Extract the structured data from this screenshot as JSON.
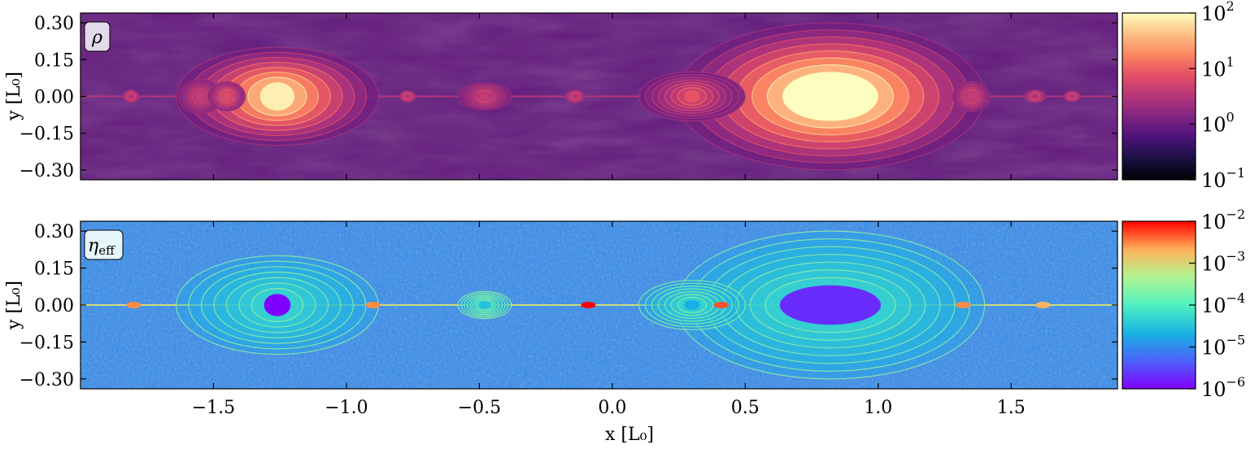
{
  "chart_data": [
    {
      "type": "heatmap",
      "panel_label": "ρ",
      "ylabel": "y [L₀]",
      "xlim": [
        -2.0,
        1.9
      ],
      "ylim": [
        -0.34,
        0.34
      ],
      "yticks": [
        {
          "value": 0.3,
          "label": "0.30"
        },
        {
          "value": 0.15,
          "label": "0.15"
        },
        {
          "value": 0.0,
          "label": "0.00"
        },
        {
          "value": -0.15,
          "label": "−0.15"
        },
        {
          "value": -0.3,
          "label": "−0.30"
        }
      ],
      "colormap": "magma",
      "colorbar": {
        "scale": "log",
        "range": [
          0.1,
          100
        ],
        "ticks": [
          {
            "value": 100,
            "base": "10",
            "exp": "2"
          },
          {
            "value": 10,
            "base": "10",
            "exp": "1"
          },
          {
            "value": 1,
            "base": "10",
            "exp": "0"
          },
          {
            "value": 0.1,
            "base": "10",
            "exp": "−1"
          }
        ]
      },
      "background_level": 0.8,
      "structures": [
        {
          "x": -1.26,
          "y": 0.0,
          "rx": 0.38,
          "ry": 0.2,
          "core_rx": 0.065,
          "core_ry": 0.058,
          "level": 80
        },
        {
          "x": 0.82,
          "y": 0.0,
          "rx": 0.58,
          "ry": 0.3,
          "core_rx": 0.18,
          "core_ry": 0.1,
          "level": 100
        },
        {
          "x": 0.3,
          "y": 0.0,
          "rx": 0.2,
          "ry": 0.1,
          "core_rx": 0.03,
          "core_ry": 0.025,
          "level": 8
        },
        {
          "x": -1.55,
          "y": 0.0,
          "rx": 0.08,
          "ry": 0.07,
          "core_rx": 0.02,
          "core_ry": 0.02,
          "level": 4
        },
        {
          "x": -1.45,
          "y": 0.0,
          "rx": 0.07,
          "ry": 0.06,
          "core_rx": 0.02,
          "core_ry": 0.02,
          "level": 6
        },
        {
          "x": -0.48,
          "y": 0.0,
          "rx": 0.1,
          "ry": 0.055,
          "core_rx": 0.02,
          "core_ry": 0.015,
          "level": 4
        },
        {
          "x": -1.81,
          "y": 0.0,
          "rx": 0.03,
          "ry": 0.025,
          "core_rx": 0.01,
          "core_ry": 0.01,
          "level": 3
        },
        {
          "x": -0.77,
          "y": 0.0,
          "rx": 0.03,
          "ry": 0.022,
          "core_rx": 0.01,
          "core_ry": 0.01,
          "level": 3
        },
        {
          "x": -0.14,
          "y": 0.0,
          "rx": 0.035,
          "ry": 0.025,
          "core_rx": 0.01,
          "core_ry": 0.01,
          "level": 3
        },
        {
          "x": 1.35,
          "y": 0.0,
          "rx": 0.07,
          "ry": 0.06,
          "core_rx": 0.02,
          "core_ry": 0.02,
          "level": 4
        },
        {
          "x": 1.59,
          "y": 0.0,
          "rx": 0.04,
          "ry": 0.025,
          "core_rx": 0.01,
          "core_ry": 0.01,
          "level": 3
        },
        {
          "x": 1.73,
          "y": 0.0,
          "rx": 0.03,
          "ry": 0.02,
          "core_rx": 0.01,
          "core_ry": 0.01,
          "level": 3
        }
      ]
    },
    {
      "type": "heatmap",
      "panel_label": "η",
      "panel_label_sub": "eff",
      "xlabel": "x [L₀]",
      "ylabel": "y [L₀]",
      "xlim": [
        -2.0,
        1.9
      ],
      "ylim": [
        -0.34,
        0.34
      ],
      "xticks": [
        {
          "value": -1.5,
          "label": "−1.5"
        },
        {
          "value": -1.0,
          "label": "−1.0"
        },
        {
          "value": -0.5,
          "label": "−0.5"
        },
        {
          "value": 0.0,
          "label": "0.0"
        },
        {
          "value": 0.5,
          "label": "0.5"
        },
        {
          "value": 1.0,
          "label": "1.0"
        },
        {
          "value": 1.5,
          "label": "1.5"
        }
      ],
      "yticks": [
        {
          "value": 0.3,
          "label": "0.30"
        },
        {
          "value": 0.15,
          "label": "0.15"
        },
        {
          "value": 0.0,
          "label": "0.00"
        },
        {
          "value": -0.15,
          "label": "−0.15"
        },
        {
          "value": -0.3,
          "label": "−0.30"
        }
      ],
      "colormap": "rainbow",
      "colorbar": {
        "scale": "log",
        "range": [
          1e-06,
          0.01
        ],
        "ticks": [
          {
            "value": 0.01,
            "base": "10",
            "exp": "−2"
          },
          {
            "value": 0.001,
            "base": "10",
            "exp": "−3"
          },
          {
            "value": 0.0001,
            "base": "10",
            "exp": "−4"
          },
          {
            "value": 1e-05,
            "base": "10",
            "exp": "−5"
          },
          {
            "value": 1e-06,
            "base": "10",
            "exp": "−6"
          }
        ]
      },
      "background_level": 1e-05,
      "structures": [
        {
          "x": -1.26,
          "y": 0.0,
          "rx": 0.38,
          "ry": 0.2,
          "core_rx": 0.05,
          "core_ry": 0.045,
          "level": 1e-06
        },
        {
          "x": 0.82,
          "y": 0.0,
          "rx": 0.58,
          "ry": 0.3,
          "core_rx": 0.19,
          "core_ry": 0.08,
          "level": 2e-06
        },
        {
          "x": 0.3,
          "y": 0.0,
          "rx": 0.2,
          "ry": 0.1,
          "core_rx": 0.03,
          "core_ry": 0.02,
          "level": 2e-05
        },
        {
          "x": -0.48,
          "y": 0.0,
          "rx": 0.1,
          "ry": 0.055,
          "core_rx": 0.02,
          "core_ry": 0.015,
          "level": 3e-05
        }
      ],
      "hotspots": [
        {
          "x": -0.09,
          "y": 0.0,
          "level": 0.01
        },
        {
          "x": 0.41,
          "y": 0.0,
          "level": 0.005
        },
        {
          "x": -1.8,
          "y": 0.0,
          "level": 0.003
        },
        {
          "x": -0.9,
          "y": 0.0,
          "level": 0.003
        },
        {
          "x": 1.32,
          "y": 0.0,
          "level": 0.003
        },
        {
          "x": 1.62,
          "y": 0.0,
          "level": 0.002
        }
      ]
    }
  ]
}
